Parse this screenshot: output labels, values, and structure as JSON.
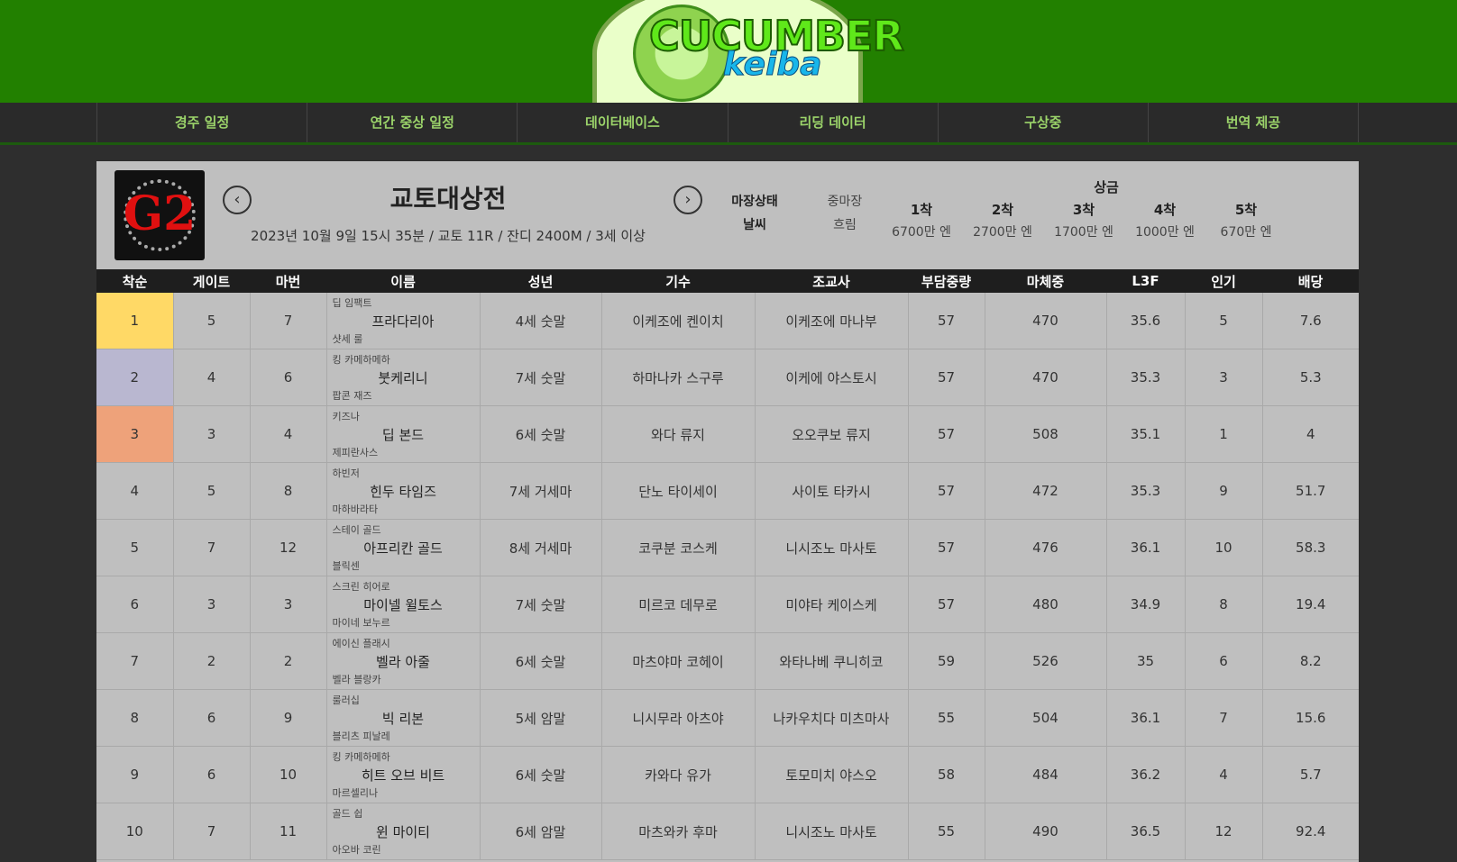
{
  "logo": {
    "line1": "CUCUMBER",
    "line2": "keiba"
  },
  "nav": [
    "경주 일정",
    "연간 중상 일정",
    "데이터베이스",
    "리딩 데이터",
    "구상중",
    "번역 제공"
  ],
  "race": {
    "grade": "G2",
    "title": "교토대상전",
    "info": "2023년 10월 9일 15시 35분 / 교토 11R / 잔디 2400M / 3세 이상",
    "prev_icon": "chevron-left-icon",
    "next_icon": "chevron-right-icon",
    "track_label": "마장상태",
    "track_value": "중마장",
    "weather_label": "날씨",
    "weather_value": "흐림",
    "prize_title": "상금",
    "prizes": [
      {
        "rank": "1착",
        "amount": "6700만 엔"
      },
      {
        "rank": "2착",
        "amount": "2700만 엔"
      },
      {
        "rank": "3착",
        "amount": "1700만 엔"
      },
      {
        "rank": "4착",
        "amount": "1000만 엔"
      },
      {
        "rank": "5착",
        "amount": "670만 엔"
      }
    ]
  },
  "columns": [
    "착순",
    "게이트",
    "마번",
    "이름",
    "성년",
    "기수",
    "조교사",
    "부담중량",
    "마체중",
    "L3F",
    "인기",
    "배당"
  ],
  "rows": [
    {
      "pos": "1",
      "gate": "5",
      "num": "7",
      "sire": "딥 임팩트",
      "name": "프라다리아",
      "dam": "샷세 룰",
      "sexage": "4세 숫말",
      "jockey": "이케조에 켄이치",
      "trainer": "이케조에 마나부",
      "weight": "57",
      "body": "470",
      "l3f": "35.6",
      "pop": "5",
      "odds": "7.6"
    },
    {
      "pos": "2",
      "gate": "4",
      "num": "6",
      "sire": "킹 카메하메하",
      "name": "붓케리니",
      "dam": "팝콘 재즈",
      "sexage": "7세 숫말",
      "jockey": "하마나카 스구루",
      "trainer": "이케에 야스토시",
      "weight": "57",
      "body": "470",
      "l3f": "35.3",
      "pop": "3",
      "odds": "5.3"
    },
    {
      "pos": "3",
      "gate": "3",
      "num": "4",
      "sire": "키즈나",
      "name": "딥 본드",
      "dam": "제피란사스",
      "sexage": "6세 숫말",
      "jockey": "와다 류지",
      "trainer": "오오쿠보 류지",
      "weight": "57",
      "body": "508",
      "l3f": "35.1",
      "pop": "1",
      "odds": "4"
    },
    {
      "pos": "4",
      "gate": "5",
      "num": "8",
      "sire": "하빈저",
      "name": "힌두 타임즈",
      "dam": "마하바라타",
      "sexage": "7세 거세마",
      "jockey": "단노 타이세이",
      "trainer": "사이토 타카시",
      "weight": "57",
      "body": "472",
      "l3f": "35.3",
      "pop": "9",
      "odds": "51.7"
    },
    {
      "pos": "5",
      "gate": "7",
      "num": "12",
      "sire": "스테이 골드",
      "name": "아프리칸 골드",
      "dam": "블릭센",
      "sexage": "8세 거세마",
      "jockey": "코쿠분 코스케",
      "trainer": "니시조노 마사토",
      "weight": "57",
      "body": "476",
      "l3f": "36.1",
      "pop": "10",
      "odds": "58.3"
    },
    {
      "pos": "6",
      "gate": "3",
      "num": "3",
      "sire": "스크린 히어로",
      "name": "마이넬 윌토스",
      "dam": "마이네 보누르",
      "sexage": "7세 숫말",
      "jockey": "미르코 데무로",
      "trainer": "미야타 케이스케",
      "weight": "57",
      "body": "480",
      "l3f": "34.9",
      "pop": "8",
      "odds": "19.4"
    },
    {
      "pos": "7",
      "gate": "2",
      "num": "2",
      "sire": "에이신 플래시",
      "name": "벨라 아줄",
      "dam": "벨라 블랑카",
      "sexage": "6세 숫말",
      "jockey": "마츠야마 코헤이",
      "trainer": "와타나베 쿠니히코",
      "weight": "59",
      "body": "526",
      "l3f": "35",
      "pop": "6",
      "odds": "8.2"
    },
    {
      "pos": "8",
      "gate": "6",
      "num": "9",
      "sire": "룰러십",
      "name": "빅 리본",
      "dam": "블리츠 피날레",
      "sexage": "5세 암말",
      "jockey": "니시무라 아츠야",
      "trainer": "나카우치다 미츠마사",
      "weight": "55",
      "body": "504",
      "l3f": "36.1",
      "pop": "7",
      "odds": "15.6"
    },
    {
      "pos": "9",
      "gate": "6",
      "num": "10",
      "sire": "킹 카메하메하",
      "name": "히트 오브 비트",
      "dam": "마르셀리나",
      "sexage": "6세 숫말",
      "jockey": "카와다 유가",
      "trainer": "토모미치 야스오",
      "weight": "58",
      "body": "484",
      "l3f": "36.2",
      "pop": "4",
      "odds": "5.7"
    },
    {
      "pos": "10",
      "gate": "7",
      "num": "11",
      "sire": "골드 쉽",
      "name": "윈 마이티",
      "dam": "아오바 코린",
      "sexage": "6세 암말",
      "jockey": "마츠와카 후마",
      "trainer": "니시조노 마사토",
      "weight": "55",
      "body": "490",
      "l3f": "36.5",
      "pop": "12",
      "odds": "92.4"
    }
  ]
}
